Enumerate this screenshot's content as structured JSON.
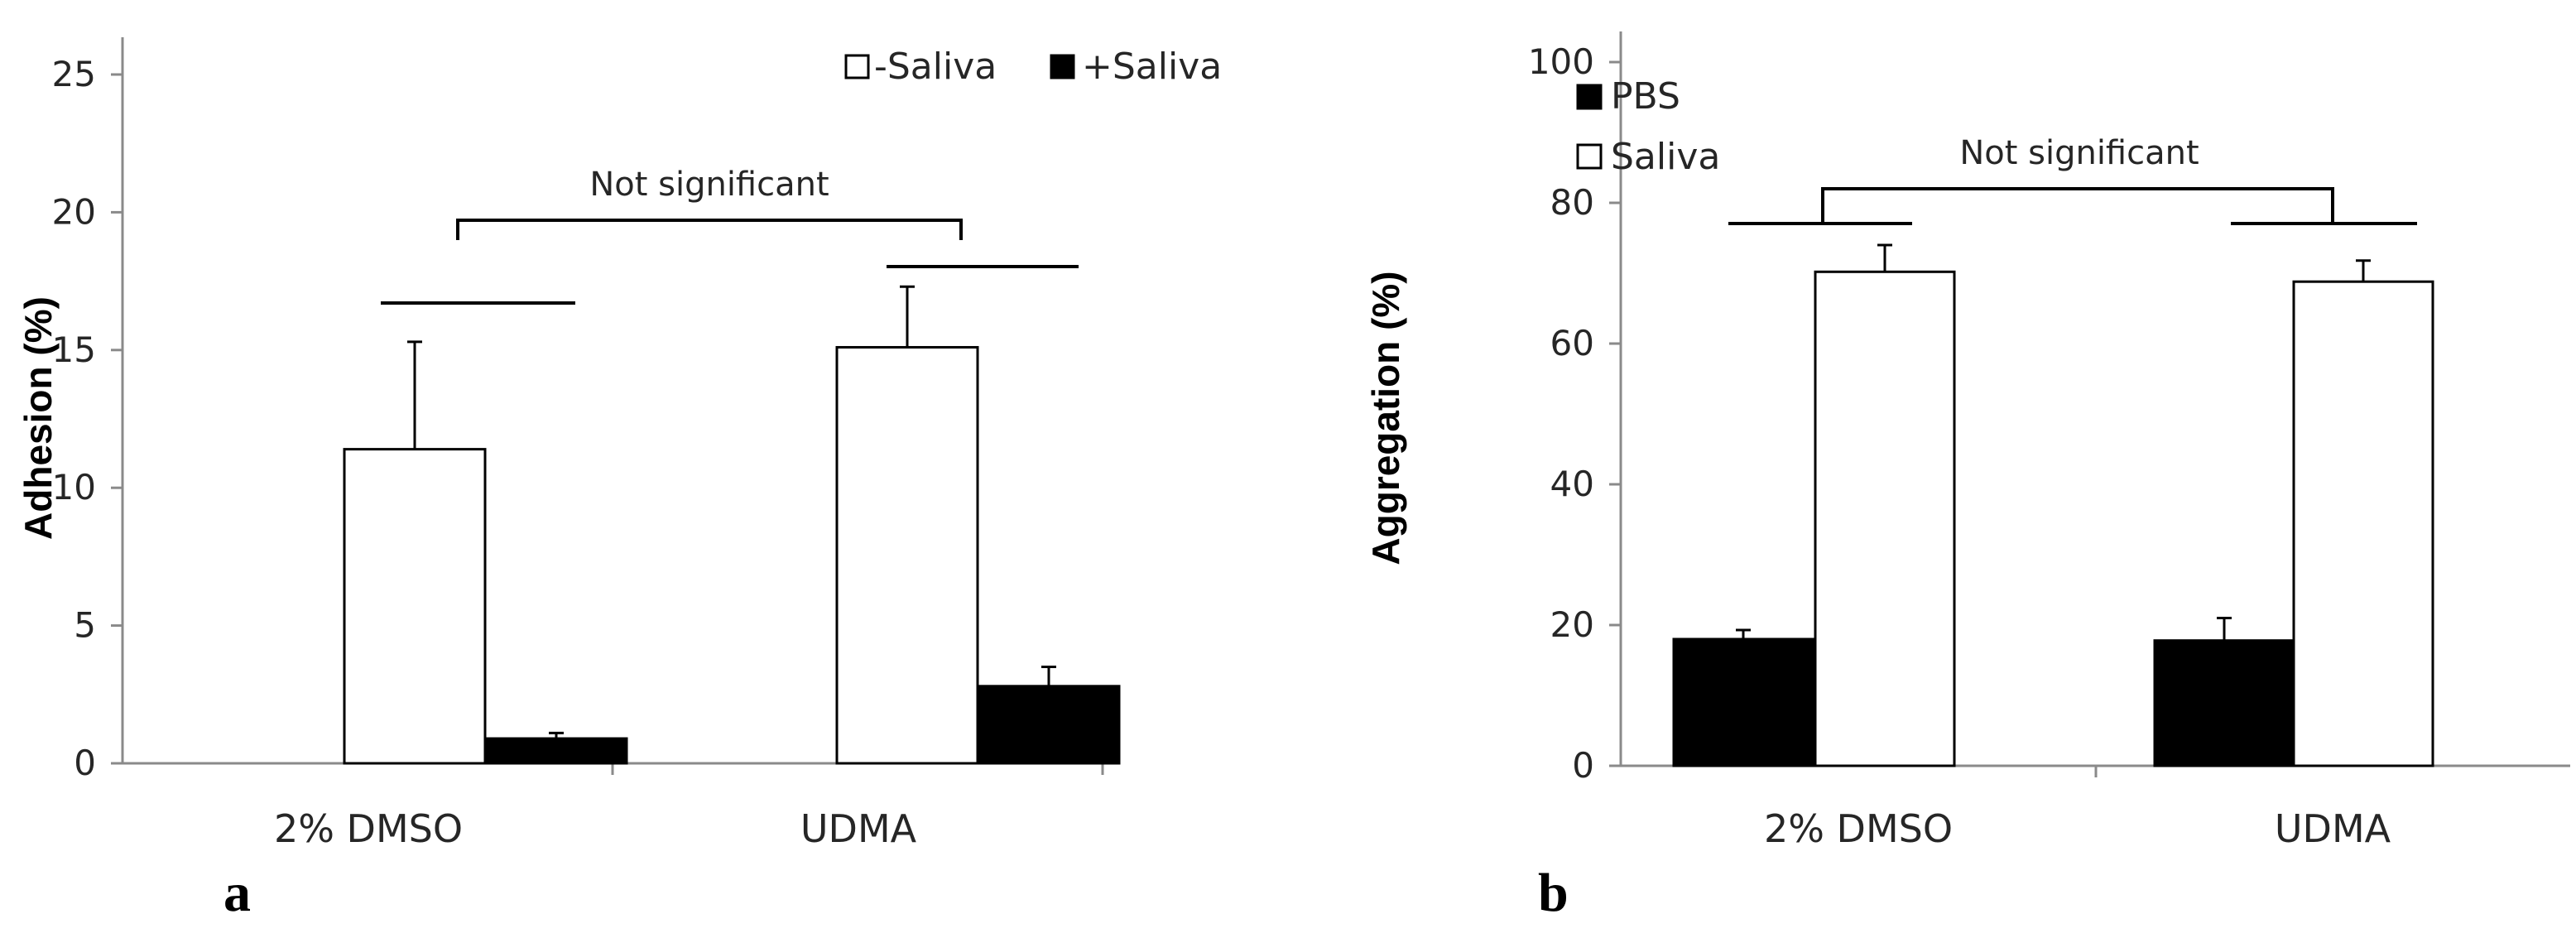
{
  "chart_data": [
    {
      "type": "bar",
      "panel_label": "a",
      "categories": [
        "2% DMSO",
        "UDMA"
      ],
      "series": [
        {
          "name": "-Saliva",
          "fill": "#ffffff",
          "values": [
            11.4,
            15.1
          ],
          "errors": [
            3.9,
            2.2
          ]
        },
        {
          "name": "+Saliva",
          "fill": "#000000",
          "values": [
            0.9,
            2.8
          ],
          "errors": [
            0.2,
            0.7
          ]
        }
      ],
      "ylabel": "Adhesion (%)",
      "xlabel": "",
      "ylim": [
        0,
        25
      ],
      "yticks": [
        0,
        5,
        10,
        15,
        20,
        25
      ],
      "legend_position": "top-right",
      "annotations": [
        {
          "text": "Not significant"
        }
      ],
      "grid": false
    },
    {
      "type": "bar",
      "panel_label": "b",
      "categories": [
        "2% DMSO",
        "UDMA"
      ],
      "series": [
        {
          "name": "PBS",
          "fill": "#000000",
          "values": [
            18,
            17.8
          ],
          "errors": [
            1.3,
            3.2
          ]
        },
        {
          "name": "Saliva",
          "fill": "#ffffff",
          "values": [
            70.2,
            68.8
          ],
          "errors": [
            3.8,
            3.0
          ]
        }
      ],
      "ylabel": "Aggregation (%)",
      "xlabel": "",
      "ylim": [
        0,
        100
      ],
      "yticks": [
        0,
        20,
        40,
        60,
        80,
        100
      ],
      "legend_position": "top-left",
      "annotations": [
        {
          "text": "Not significant"
        }
      ],
      "grid": false
    }
  ]
}
